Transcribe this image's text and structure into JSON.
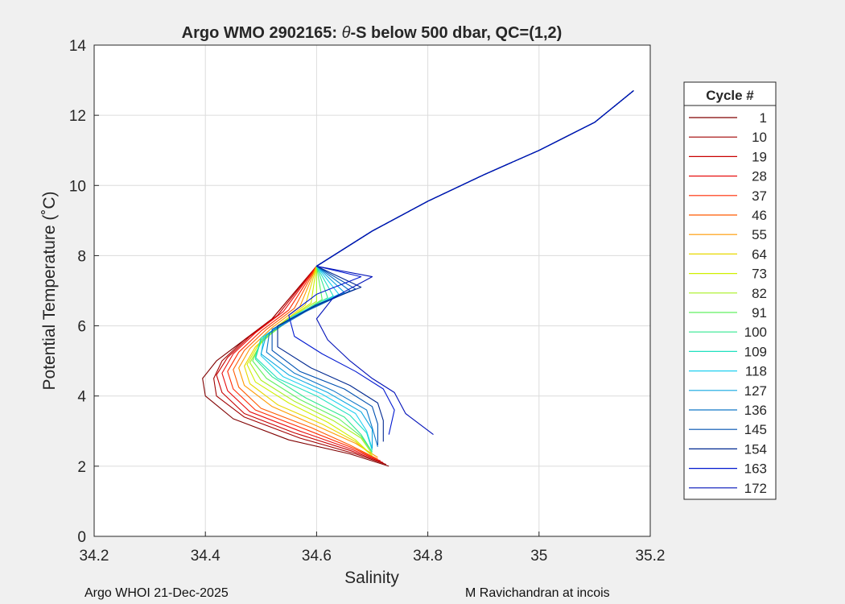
{
  "chart_data": {
    "type": "line",
    "title_prefix": "Argo WMO 2902165: ",
    "title_theta": "θ",
    "title_suffix": "-S below 500 dbar,  QC=(1,2)",
    "xlabel": "Salinity",
    "ylabel": "Potential Temperature (˚C)",
    "xlim": [
      34.2,
      35.2
    ],
    "ylim": [
      0,
      14
    ],
    "x_ticks": [
      34.2,
      34.4,
      34.6,
      34.8,
      35,
      35.2
    ],
    "x_tick_labels": [
      "34.2",
      "34.4",
      "34.6",
      "34.8",
      "35",
      "35.2"
    ],
    "y_ticks": [
      0,
      2,
      4,
      6,
      8,
      10,
      12,
      14
    ],
    "y_tick_labels": [
      "0",
      "2",
      "4",
      "6",
      "8",
      "10",
      "12",
      "14"
    ],
    "grid": true,
    "legend": {
      "title": "Cycle #",
      "placement": "outside-right",
      "entries": [
        {
          "label": "1",
          "color": "#800000"
        },
        {
          "label": "10",
          "color": "#a00000"
        },
        {
          "label": "19",
          "color": "#c80000"
        },
        {
          "label": "28",
          "color": "#e81010"
        },
        {
          "label": "37",
          "color": "#ff2800"
        },
        {
          "label": "46",
          "color": "#ff5a00"
        },
        {
          "label": "55",
          "color": "#ff9a00"
        },
        {
          "label": "64",
          "color": "#e8d800"
        },
        {
          "label": "73",
          "color": "#d0f000"
        },
        {
          "label": "82",
          "color": "#a8f020"
        },
        {
          "label": "91",
          "color": "#60f060"
        },
        {
          "label": "100",
          "color": "#30e890"
        },
        {
          "label": "109",
          "color": "#20e0c0"
        },
        {
          "label": "118",
          "color": "#20d0f0"
        },
        {
          "label": "127",
          "color": "#10a8e0"
        },
        {
          "label": "136",
          "color": "#1078c8"
        },
        {
          "label": "145",
          "color": "#0050b0"
        },
        {
          "label": "154",
          "color": "#002890"
        },
        {
          "label": "163",
          "color": "#0018d0"
        },
        {
          "label": "172",
          "color": "#0010b8"
        }
      ]
    },
    "series": [
      {
        "legend_index": 0,
        "points": [
          [
            34.73,
            2.0
          ],
          [
            34.66,
            2.35
          ],
          [
            34.55,
            2.75
          ],
          [
            34.45,
            3.35
          ],
          [
            34.4,
            4.0
          ],
          [
            34.395,
            4.5
          ],
          [
            34.42,
            5.0
          ],
          [
            34.47,
            5.6
          ],
          [
            34.52,
            6.2
          ]
        ]
      },
      {
        "legend_index": 1,
        "points": [
          [
            34.725,
            2.05
          ],
          [
            34.67,
            2.35
          ],
          [
            34.57,
            2.8
          ],
          [
            34.47,
            3.4
          ],
          [
            34.42,
            4.0
          ],
          [
            34.415,
            4.5
          ],
          [
            34.43,
            5.0
          ],
          [
            34.47,
            5.6
          ],
          [
            34.52,
            6.2
          ]
        ]
      },
      {
        "legend_index": 2,
        "points": [
          [
            34.72,
            2.1
          ],
          [
            34.66,
            2.45
          ],
          [
            34.56,
            2.95
          ],
          [
            34.47,
            3.5
          ],
          [
            34.43,
            4.1
          ],
          [
            34.42,
            4.6
          ],
          [
            34.44,
            5.1
          ],
          [
            34.48,
            5.7
          ],
          [
            34.53,
            6.3
          ]
        ]
      },
      {
        "legend_index": 3,
        "points": [
          [
            34.715,
            2.15
          ],
          [
            34.66,
            2.5
          ],
          [
            34.57,
            3.0
          ],
          [
            34.48,
            3.55
          ],
          [
            34.44,
            4.15
          ],
          [
            34.43,
            4.65
          ],
          [
            34.45,
            5.2
          ],
          [
            34.49,
            5.8
          ],
          [
            34.54,
            6.4
          ]
        ]
      },
      {
        "legend_index": 4,
        "points": [
          [
            34.71,
            2.2
          ],
          [
            34.66,
            2.55
          ],
          [
            34.58,
            3.05
          ],
          [
            34.49,
            3.6
          ],
          [
            34.45,
            4.2
          ],
          [
            34.44,
            4.7
          ],
          [
            34.46,
            5.25
          ],
          [
            34.5,
            5.85
          ],
          [
            34.55,
            6.45
          ]
        ]
      },
      {
        "legend_index": 5,
        "points": [
          [
            34.71,
            2.2
          ],
          [
            34.66,
            2.6
          ],
          [
            34.59,
            3.1
          ],
          [
            34.5,
            3.65
          ],
          [
            34.46,
            4.25
          ],
          [
            34.45,
            4.75
          ],
          [
            34.47,
            5.3
          ],
          [
            34.51,
            5.9
          ],
          [
            34.56,
            6.5
          ]
        ]
      },
      {
        "legend_index": 6,
        "points": [
          [
            34.71,
            2.25
          ],
          [
            34.67,
            2.65
          ],
          [
            34.6,
            3.15
          ],
          [
            34.52,
            3.7
          ],
          [
            34.47,
            4.3
          ],
          [
            34.46,
            4.8
          ],
          [
            34.48,
            5.35
          ],
          [
            34.52,
            5.95
          ],
          [
            34.57,
            6.55
          ]
        ]
      },
      {
        "legend_index": 7,
        "points": [
          [
            34.7,
            2.3
          ],
          [
            34.67,
            2.7
          ],
          [
            34.61,
            3.2
          ],
          [
            34.53,
            3.75
          ],
          [
            34.48,
            4.35
          ],
          [
            34.47,
            4.85
          ],
          [
            34.49,
            5.4
          ],
          [
            34.53,
            6.0
          ],
          [
            34.58,
            6.6
          ]
        ]
      },
      {
        "legend_index": 8,
        "points": [
          [
            34.7,
            2.3
          ],
          [
            34.67,
            2.75
          ],
          [
            34.62,
            3.25
          ],
          [
            34.55,
            3.8
          ],
          [
            34.49,
            4.4
          ],
          [
            34.475,
            4.9
          ],
          [
            34.495,
            5.45
          ],
          [
            34.535,
            6.05
          ],
          [
            34.59,
            6.65
          ]
        ]
      },
      {
        "legend_index": 9,
        "points": [
          [
            34.7,
            2.35
          ],
          [
            34.68,
            2.8
          ],
          [
            34.63,
            3.3
          ],
          [
            34.56,
            3.85
          ],
          [
            34.5,
            4.45
          ],
          [
            34.48,
            4.95
          ],
          [
            34.5,
            5.5
          ],
          [
            34.54,
            6.1
          ],
          [
            34.6,
            6.7
          ]
        ]
      },
      {
        "legend_index": 10,
        "points": [
          [
            34.7,
            2.4
          ],
          [
            34.68,
            2.85
          ],
          [
            34.64,
            3.35
          ],
          [
            34.57,
            3.9
          ],
          [
            34.51,
            4.5
          ],
          [
            34.485,
            5.0
          ],
          [
            34.5,
            5.55
          ],
          [
            34.55,
            6.15
          ],
          [
            34.61,
            6.75
          ]
        ]
      },
      {
        "legend_index": 11,
        "points": [
          [
            34.7,
            2.4
          ],
          [
            34.68,
            2.9
          ],
          [
            34.65,
            3.4
          ],
          [
            34.58,
            3.95
          ],
          [
            34.52,
            4.55
          ],
          [
            34.49,
            5.05
          ],
          [
            34.5,
            5.6
          ],
          [
            34.55,
            6.2
          ],
          [
            34.62,
            6.8
          ]
        ]
      },
      {
        "legend_index": 12,
        "points": [
          [
            34.7,
            2.45
          ],
          [
            34.69,
            2.95
          ],
          [
            34.66,
            3.45
          ],
          [
            34.6,
            4.0
          ],
          [
            34.53,
            4.5
          ],
          [
            34.49,
            5.1
          ],
          [
            34.5,
            5.65
          ],
          [
            34.56,
            6.25
          ],
          [
            34.63,
            6.85
          ]
        ]
      },
      {
        "legend_index": 13,
        "points": [
          [
            34.7,
            2.5
          ],
          [
            34.69,
            3.0
          ],
          [
            34.67,
            3.5
          ],
          [
            34.61,
            4.05
          ],
          [
            34.54,
            4.55
          ],
          [
            34.5,
            5.15
          ],
          [
            34.505,
            5.7
          ],
          [
            34.56,
            6.3
          ],
          [
            34.64,
            6.9
          ]
        ]
      },
      {
        "legend_index": 14,
        "points": [
          [
            34.7,
            2.5
          ],
          [
            34.7,
            3.05
          ],
          [
            34.68,
            3.55
          ],
          [
            34.62,
            4.1
          ],
          [
            34.55,
            4.6
          ],
          [
            34.5,
            5.2
          ],
          [
            34.51,
            5.75
          ],
          [
            34.57,
            6.35
          ],
          [
            34.65,
            6.95
          ]
        ]
      },
      {
        "legend_index": 15,
        "points": [
          [
            34.71,
            2.55
          ],
          [
            34.7,
            3.1
          ],
          [
            34.69,
            3.6
          ],
          [
            34.63,
            4.15
          ],
          [
            34.56,
            4.65
          ],
          [
            34.51,
            5.25
          ],
          [
            34.515,
            5.8
          ],
          [
            34.58,
            6.4
          ],
          [
            34.66,
            7.0
          ]
        ]
      },
      {
        "legend_index": 16,
        "points": [
          [
            34.71,
            2.6
          ],
          [
            34.71,
            3.2
          ],
          [
            34.7,
            3.7
          ],
          [
            34.65,
            4.2
          ],
          [
            34.57,
            4.7
          ],
          [
            34.52,
            5.3
          ],
          [
            34.52,
            5.9
          ],
          [
            34.59,
            6.5
          ],
          [
            34.67,
            7.05
          ]
        ]
      },
      {
        "legend_index": 17,
        "points": [
          [
            34.72,
            2.7
          ],
          [
            34.72,
            3.3
          ],
          [
            34.71,
            3.8
          ],
          [
            34.66,
            4.3
          ],
          [
            34.59,
            4.8
          ],
          [
            34.53,
            5.4
          ],
          [
            34.53,
            6.0
          ],
          [
            34.6,
            6.6
          ],
          [
            34.68,
            7.1
          ]
        ]
      },
      {
        "legend_index": 18,
        "points": [
          [
            34.73,
            2.9
          ],
          [
            34.74,
            3.6
          ],
          [
            34.72,
            4.2
          ],
          [
            34.67,
            4.7
          ],
          [
            34.61,
            5.2
          ],
          [
            34.56,
            5.7
          ],
          [
            34.55,
            6.3
          ],
          [
            34.6,
            6.9
          ],
          [
            34.68,
            7.4
          ]
        ]
      },
      {
        "legend_index": 19,
        "points": [
          [
            34.81,
            2.9
          ],
          [
            34.76,
            3.5
          ],
          [
            34.74,
            4.1
          ],
          [
            34.7,
            4.5
          ],
          [
            34.66,
            5.0
          ],
          [
            34.62,
            5.6
          ],
          [
            34.6,
            6.2
          ],
          [
            34.63,
            6.8
          ],
          [
            34.7,
            7.4
          ]
        ]
      }
    ],
    "upper_curve": {
      "shared_points": [
        [
          34.6,
          7.7
        ],
        [
          34.7,
          8.7
        ],
        [
          34.8,
          9.55
        ],
        [
          34.9,
          10.3
        ],
        [
          35.0,
          11.0
        ],
        [
          35.1,
          11.8
        ],
        [
          35.17,
          12.7
        ]
      ]
    }
  },
  "footer": {
    "left": "Argo WHOI 21-Dec-2025",
    "right": "M Ravichandran at incois"
  }
}
